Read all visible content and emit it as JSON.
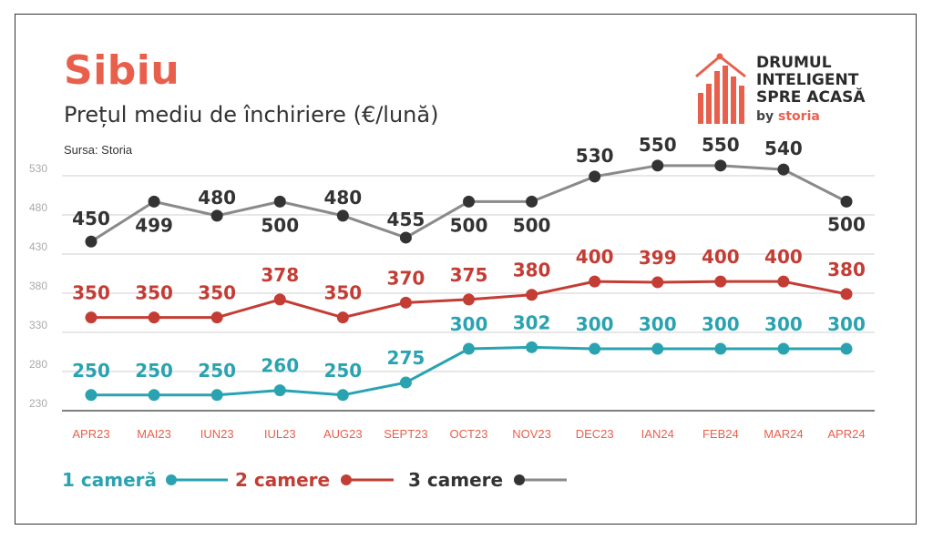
{
  "header": {
    "title": "Sibiu",
    "subtitle": "Prețul mediu de închiriere (€/lună)",
    "source": "Sursa: Storia"
  },
  "logo": {
    "line1": "DRUMUL",
    "line2": "INTELIGENT",
    "line3": "SPRE ACASĂ",
    "by": "by",
    "brand": "storia"
  },
  "colors": {
    "one_room": "#2aa3b1",
    "two_rooms": "#c33d35",
    "three_rooms": "#8a8a8a",
    "three_rooms_marker": "#333333",
    "accent": "#e8604c"
  },
  "chart_data": {
    "type": "line",
    "title": "Prețul mediu de închiriere (€/lună)",
    "categories": [
      "APR23",
      "MAI23",
      "IUN23",
      "IUL23",
      "AUG23",
      "SEPT23",
      "OCT23",
      "NOV23",
      "DEC23",
      "IAN24",
      "FEB24",
      "MAR24",
      "APR24"
    ],
    "ylim": [
      230,
      550
    ],
    "yticks": [
      230,
      280,
      330,
      380,
      430,
      480,
      530
    ],
    "grid": true,
    "legend_position": "bottom-left",
    "series": [
      {
        "name": "1 cameră",
        "key": "one_room",
        "values": [
          250,
          250,
          250,
          260,
          250,
          275,
          300,
          302,
          300,
          300,
          300,
          300,
          300
        ],
        "plot_values": [
          250,
          250,
          250,
          256,
          250,
          266,
          309,
          311,
          309,
          309,
          309,
          309,
          309
        ]
      },
      {
        "name": "2 camere",
        "key": "two_rooms",
        "values": [
          350,
          350,
          350,
          378,
          350,
          370,
          375,
          380,
          400,
          399,
          400,
          400,
          380
        ],
        "plot_values": [
          349,
          349,
          349,
          372,
          349,
          368,
          372,
          378,
          395,
          394,
          395,
          395,
          379
        ]
      },
      {
        "name": "3 camere",
        "key": "three_rooms",
        "values": [
          450,
          499,
          480,
          500,
          480,
          455,
          500,
          500,
          530,
          550,
          550,
          540,
          500
        ],
        "plot_values": [
          446,
          497,
          479,
          497,
          479,
          451,
          497,
          497,
          529,
          543,
          543,
          538,
          497
        ]
      }
    ]
  }
}
